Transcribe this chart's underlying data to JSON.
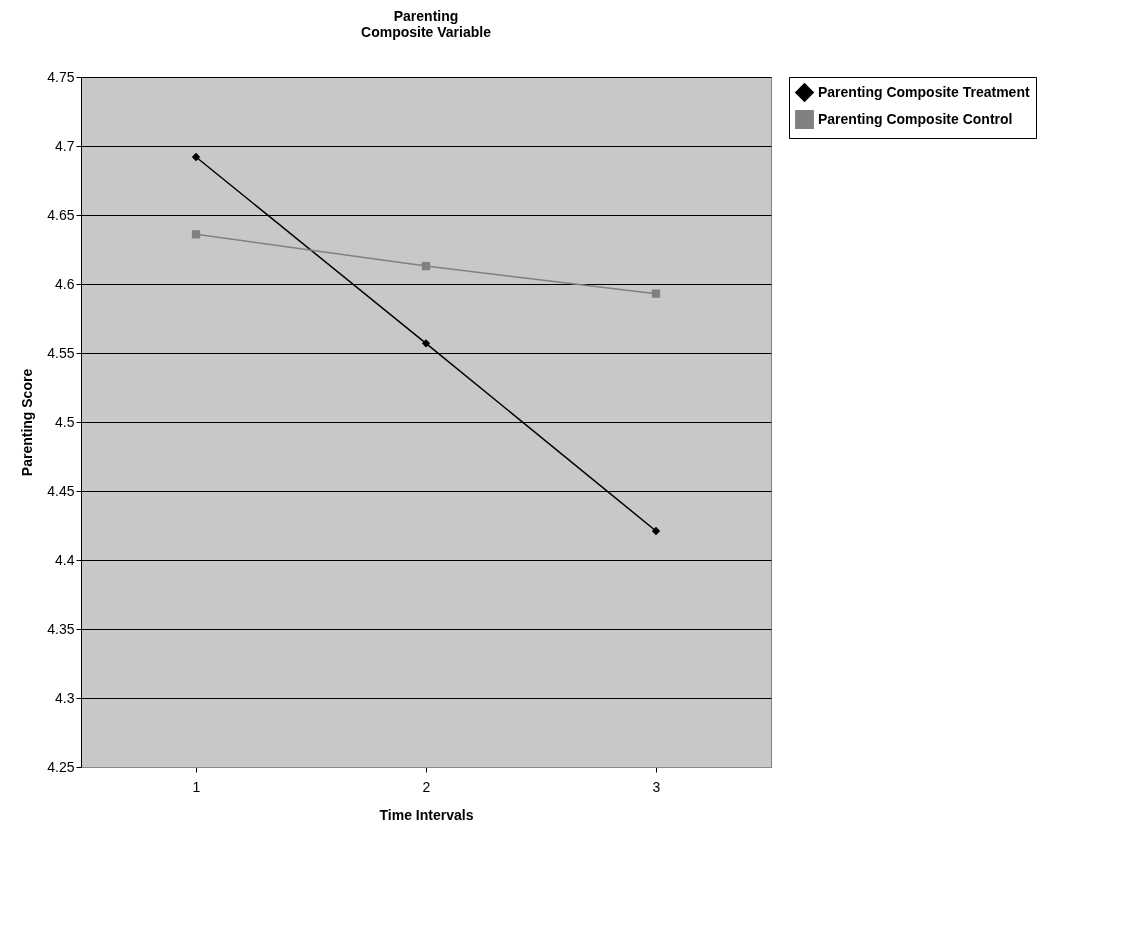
{
  "chart_data": {
    "type": "line",
    "title": "Parenting\nComposite Variable",
    "xlabel": "Time Intervals",
    "ylabel": "Parenting Score",
    "categories": [
      "1",
      "2",
      "3"
    ],
    "series": [
      {
        "name": "Parenting Composite Treatment",
        "color": "#000000",
        "marker": "diamond",
        "values": [
          4.692,
          4.557,
          4.421
        ]
      },
      {
        "name": "Parenting Composite Control",
        "color": "#808080",
        "marker": "square",
        "values": [
          4.636,
          4.613,
          4.593
        ]
      }
    ],
    "ylim": [
      4.25,
      4.75
    ],
    "yticks": [
      4.25,
      4.3,
      4.35,
      4.4,
      4.45,
      4.5,
      4.55,
      4.6,
      4.65,
      4.7,
      4.75
    ],
    "grid": "y",
    "legend": "right",
    "line_style": "solid"
  }
}
